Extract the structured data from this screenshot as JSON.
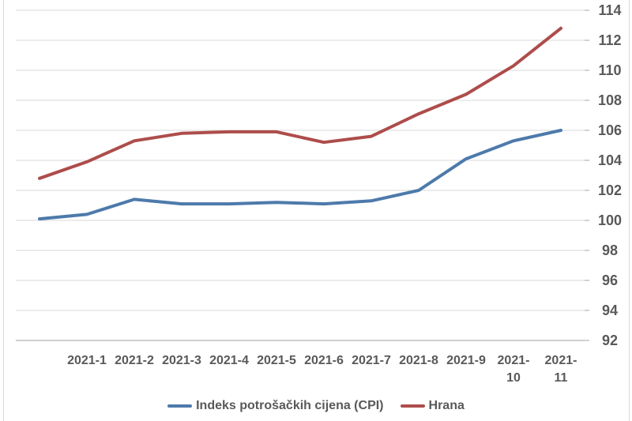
{
  "chart_data": {
    "type": "line",
    "title": "",
    "categories": [
      "",
      "2021-1",
      "2021-2",
      "2021-3",
      "2021-4",
      "2021-5",
      "2021-6",
      "2021-7",
      "2021-8",
      "2021-9",
      "2021-10",
      "2021-11"
    ],
    "series": [
      {
        "id": "cpi",
        "name": "Indeks potrošačkih cijena (CPI)",
        "color": "#4d7aab",
        "values": [
          100.1,
          100.4,
          101.4,
          101.1,
          101.1,
          101.2,
          101.1,
          101.3,
          102.0,
          104.1,
          105.3,
          106.0
        ]
      },
      {
        "id": "hrana",
        "name": "Hrana",
        "color": "#ad4d4b",
        "values": [
          102.8,
          103.9,
          105.3,
          105.8,
          105.9,
          105.9,
          105.2,
          105.6,
          107.1,
          108.4,
          110.3,
          112.8
        ]
      }
    ],
    "y_ticks": [
      114,
      112,
      110,
      108,
      106,
      104,
      102,
      100,
      98,
      96,
      94,
      92
    ],
    "ylim": [
      92,
      114
    ],
    "xlabel": "",
    "ylabel": "",
    "grid": "horizontal",
    "legend_position": "bottom",
    "colors": {
      "axis_text": "#595959",
      "gridline": "#d9d9d9",
      "axis_line": "#bfbfbf",
      "background": "#ffffff"
    }
  }
}
